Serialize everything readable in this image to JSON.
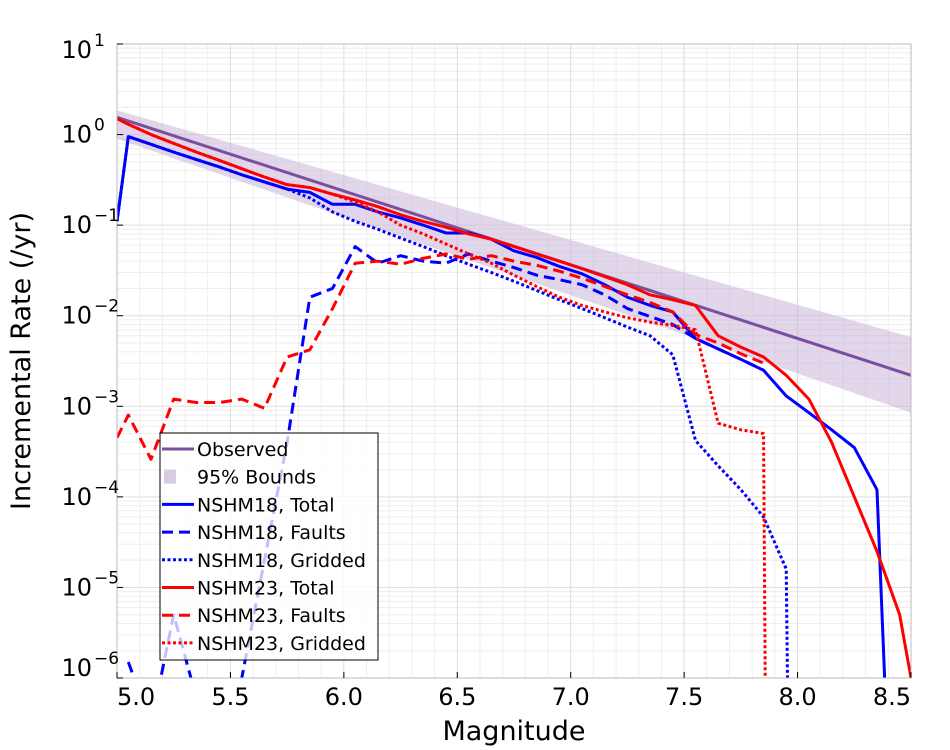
{
  "chart_data": {
    "type": "line",
    "xlabel": "Magnitude",
    "ylabel": "Incremental Rate (/yr)",
    "x_scale": "linear",
    "y_scale": "log",
    "xlim": [
      5.0,
      8.5
    ],
    "ylim": [
      1e-06,
      10
    ],
    "x_ticks": [
      {
        "value": 5.0,
        "label": "5.0"
      },
      {
        "value": 5.5,
        "label": "5.5"
      },
      {
        "value": 6.0,
        "label": "6.0"
      },
      {
        "value": 6.5,
        "label": "6.5"
      },
      {
        "value": 7.0,
        "label": "7.0"
      },
      {
        "value": 7.5,
        "label": "7.5"
      },
      {
        "value": 8.0,
        "label": "8.0"
      },
      {
        "value": 8.5,
        "label": "8.5"
      }
    ],
    "y_ticks": [
      {
        "value": 1e-06,
        "base": "10",
        "exp": "-6"
      },
      {
        "value": 1e-05,
        "base": "10",
        "exp": "-5"
      },
      {
        "value": 0.0001,
        "base": "10",
        "exp": "-4"
      },
      {
        "value": 0.001,
        "base": "10",
        "exp": "-3"
      },
      {
        "value": 0.01,
        "base": "10",
        "exp": "-2"
      },
      {
        "value": 0.1,
        "base": "10",
        "exp": "-1"
      },
      {
        "value": 1,
        "base": "10",
        "exp": "0"
      },
      {
        "value": 10,
        "base": "10",
        "exp": "1"
      }
    ],
    "grid": true,
    "legend_position": "bottom-left",
    "band": {
      "name": "95% Bounds",
      "color": "#c9b5d9",
      "x": [
        5.0,
        8.5
      ],
      "lower": [
        0.9,
        0.00085
      ],
      "upper": [
        1.85,
        0.0058
      ]
    },
    "series": [
      {
        "name": "Observed",
        "color": "#7b4f9d",
        "style": "solid",
        "width": 3,
        "x": [
          5.0,
          8.5
        ],
        "y": [
          1.55,
          0.0022
        ]
      },
      {
        "name": "NSHM18, Total",
        "color": "#0000ff",
        "style": "solid",
        "width": 3,
        "x": [
          5.0,
          5.05,
          5.15,
          5.25,
          5.35,
          5.45,
          5.55,
          5.65,
          5.75,
          5.85,
          5.95,
          6.05,
          6.15,
          6.25,
          6.35,
          6.45,
          6.55,
          6.65,
          6.75,
          6.85,
          6.95,
          7.05,
          7.15,
          7.25,
          7.35,
          7.45,
          7.55,
          7.65,
          7.75,
          7.85,
          7.95,
          8.05,
          8.15,
          8.25,
          8.35,
          8.4
        ],
        "y": [
          0.11,
          0.95,
          0.78,
          0.64,
          0.53,
          0.44,
          0.36,
          0.3,
          0.25,
          0.23,
          0.17,
          0.17,
          0.14,
          0.12,
          0.1,
          0.082,
          0.082,
          0.07,
          0.052,
          0.044,
          0.035,
          0.029,
          0.022,
          0.016,
          0.013,
          0.011,
          0.0056,
          0.0043,
          0.0033,
          0.0025,
          0.0013,
          0.00085,
          0.00055,
          0.00035,
          0.00012,
          1e-07
        ]
      },
      {
        "name": "NSHM18, Faults",
        "color": "#0000ff",
        "style": "dashed",
        "width": 3,
        "x": [
          5.05,
          5.15,
          5.25,
          5.35,
          5.45,
          5.55,
          5.65,
          5.75,
          5.85,
          5.95,
          6.05,
          6.15,
          6.25,
          6.35,
          6.45,
          6.55,
          6.65,
          6.75,
          6.85,
          6.95,
          7.05,
          7.15,
          7.25,
          7.35,
          7.45,
          7.55,
          7.65,
          7.75,
          7.85
        ],
        "y": [
          1.5e-06,
          3e-07,
          5e-06,
          6e-07,
          5e-07,
          1e-06,
          2e-05,
          0.0004,
          0.016,
          0.02,
          0.058,
          0.038,
          0.046,
          0.04,
          0.038,
          0.048,
          0.04,
          0.034,
          0.028,
          0.025,
          0.022,
          0.017,
          0.012,
          0.0098,
          0.008,
          0.0056,
          0.0043,
          0.0033,
          0.0025
        ]
      },
      {
        "name": "NSHM18, Gridded",
        "color": "#0000ff",
        "style": "dotted",
        "width": 3,
        "x": [
          5.0,
          5.05,
          5.15,
          5.25,
          5.35,
          5.45,
          5.55,
          5.65,
          5.75,
          5.85,
          5.95,
          6.05,
          6.15,
          6.25,
          6.35,
          6.45,
          6.55,
          6.65,
          6.75,
          6.85,
          6.95,
          7.05,
          7.15,
          7.25,
          7.35,
          7.45,
          7.55,
          7.65,
          7.75,
          7.85,
          7.95,
          7.96
        ],
        "y": [
          0.11,
          0.95,
          0.78,
          0.64,
          0.53,
          0.44,
          0.36,
          0.3,
          0.25,
          0.2,
          0.14,
          0.11,
          0.09,
          0.072,
          0.058,
          0.046,
          0.037,
          0.03,
          0.024,
          0.019,
          0.015,
          0.012,
          0.0095,
          0.0075,
          0.006,
          0.0037,
          0.00042,
          0.00022,
          0.00012,
          6e-05,
          1.6e-05,
          1e-07
        ]
      },
      {
        "name": "NSHM23, Total",
        "color": "#ff0000",
        "style": "solid",
        "width": 3,
        "x": [
          5.0,
          5.05,
          5.15,
          5.25,
          5.35,
          5.45,
          5.55,
          5.65,
          5.75,
          5.85,
          5.95,
          6.05,
          6.15,
          6.25,
          6.35,
          6.45,
          6.55,
          6.65,
          6.75,
          6.85,
          6.95,
          7.05,
          7.15,
          7.25,
          7.35,
          7.45,
          7.55,
          7.65,
          7.75,
          7.85,
          7.95,
          8.05,
          8.15,
          8.25,
          8.35,
          8.45,
          8.5
        ],
        "y": [
          1.5,
          1.3,
          1.0,
          0.8,
          0.64,
          0.52,
          0.42,
          0.34,
          0.28,
          0.26,
          0.22,
          0.19,
          0.16,
          0.13,
          0.11,
          0.095,
          0.08,
          0.07,
          0.058,
          0.048,
          0.04,
          0.033,
          0.027,
          0.022,
          0.017,
          0.015,
          0.013,
          0.006,
          0.0045,
          0.0035,
          0.0022,
          0.0012,
          0.0004,
          0.0001,
          2.5e-05,
          5e-06,
          1e-06
        ]
      },
      {
        "name": "NSHM23, Faults",
        "color": "#ff0000",
        "style": "dashed",
        "width": 3,
        "x": [
          5.0,
          5.05,
          5.15,
          5.25,
          5.35,
          5.45,
          5.55,
          5.65,
          5.75,
          5.85,
          5.95,
          6.05,
          6.15,
          6.25,
          6.35,
          6.45,
          6.55,
          6.65,
          6.75,
          6.85,
          6.95,
          7.05,
          7.15,
          7.25,
          7.35,
          7.45,
          7.55,
          7.65,
          7.75,
          7.85
        ],
        "y": [
          0.00045,
          0.0008,
          0.00026,
          0.0012,
          0.0011,
          0.0011,
          0.0012,
          0.00095,
          0.0035,
          0.0042,
          0.012,
          0.038,
          0.04,
          0.037,
          0.043,
          0.048,
          0.042,
          0.046,
          0.04,
          0.036,
          0.031,
          0.026,
          0.021,
          0.017,
          0.014,
          0.011,
          0.0062,
          0.005,
          0.0038,
          0.003
        ]
      },
      {
        "name": "NSHM23, Gridded",
        "color": "#ff0000",
        "style": "dotted",
        "width": 3,
        "x": [
          5.0,
          5.05,
          5.15,
          5.25,
          5.35,
          5.45,
          5.55,
          5.65,
          5.75,
          5.85,
          5.95,
          6.05,
          6.15,
          6.25,
          6.35,
          6.45,
          6.55,
          6.65,
          6.75,
          6.85,
          6.95,
          7.05,
          7.15,
          7.25,
          7.35,
          7.45,
          7.55,
          7.65,
          7.75,
          7.85,
          7.86
        ],
        "y": [
          1.5,
          1.3,
          1.0,
          0.8,
          0.64,
          0.52,
          0.42,
          0.34,
          0.28,
          0.26,
          0.22,
          0.18,
          0.14,
          0.1,
          0.08,
          0.062,
          0.048,
          0.038,
          0.028,
          0.021,
          0.016,
          0.013,
          0.011,
          0.0095,
          0.0085,
          0.0078,
          0.007,
          0.00065,
          0.00055,
          0.0005,
          1e-07
        ]
      }
    ]
  }
}
